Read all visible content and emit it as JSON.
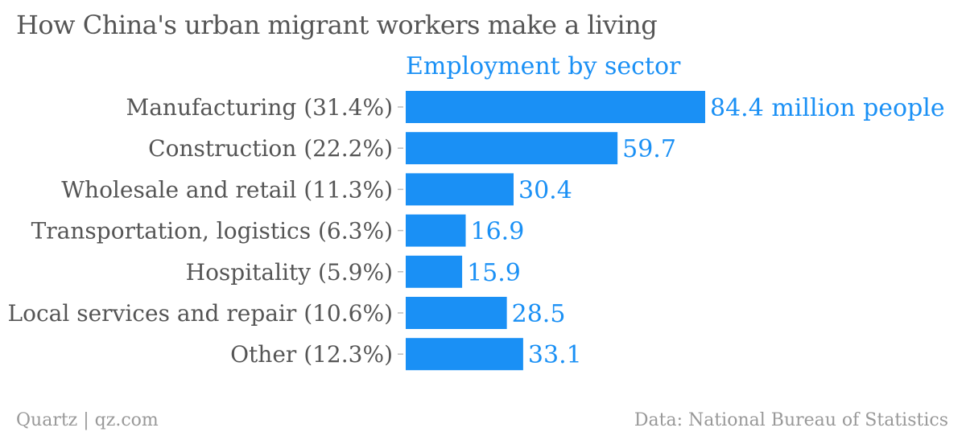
{
  "title": "How China's urban migrant workers make a living",
  "footer": {
    "source_left": "Quartz | qz.com",
    "source_right": "Data: National Bureau of Statistics"
  },
  "colors": {
    "bar": "#1a90f5",
    "value_label": "#1a90f5",
    "category_label": "#555555",
    "title": "#555555",
    "footer": "#999999"
  },
  "chart_data": {
    "type": "bar",
    "orientation": "horizontal",
    "series": [
      {
        "name": "Employment by sector",
        "values": [
          84.4,
          59.7,
          30.4,
          16.9,
          15.9,
          28.5,
          33.1
        ]
      }
    ],
    "categories": [
      "Manufacturing (31.4%)",
      "Construction (22.2%)",
      "Wholesale and retail (11.3%)",
      "Transportation, logistics (6.3%)",
      "Hospitality (5.9%)",
      "Local services and repair (10.6%)",
      "Other (12.3%)"
    ],
    "value_labels": [
      "84.4 million people",
      "59.7",
      "30.4",
      "16.9",
      "15.9",
      "28.5",
      "33.1"
    ],
    "xlim": [
      0,
      84.4
    ],
    "grid": false,
    "legend": "top"
  }
}
